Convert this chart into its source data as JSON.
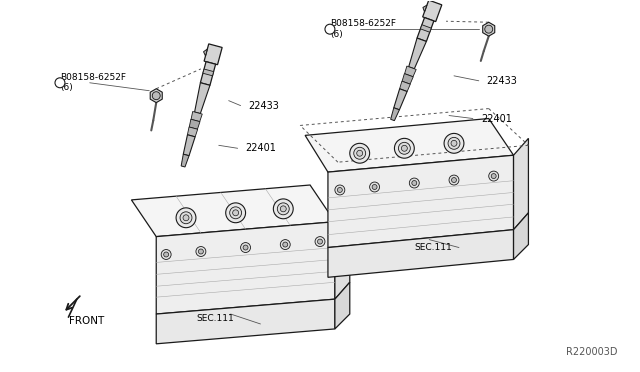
{
  "background_color": "#ffffff",
  "line_color": "#1a1a1a",
  "gray_color": "#888888",
  "label_color": "#000000",
  "diagram_ref": "R220003D",
  "parts": {
    "bolt_label_left": "B08158-6252F\n(6)",
    "bolt_label_right": "B08158-6252F\n(6)",
    "coil_label": "22433",
    "plug_label": "22401",
    "sec_label": "SEC.111",
    "front_label": "FRONT"
  },
  "figsize": [
    6.4,
    3.72
  ],
  "dpi": 100
}
